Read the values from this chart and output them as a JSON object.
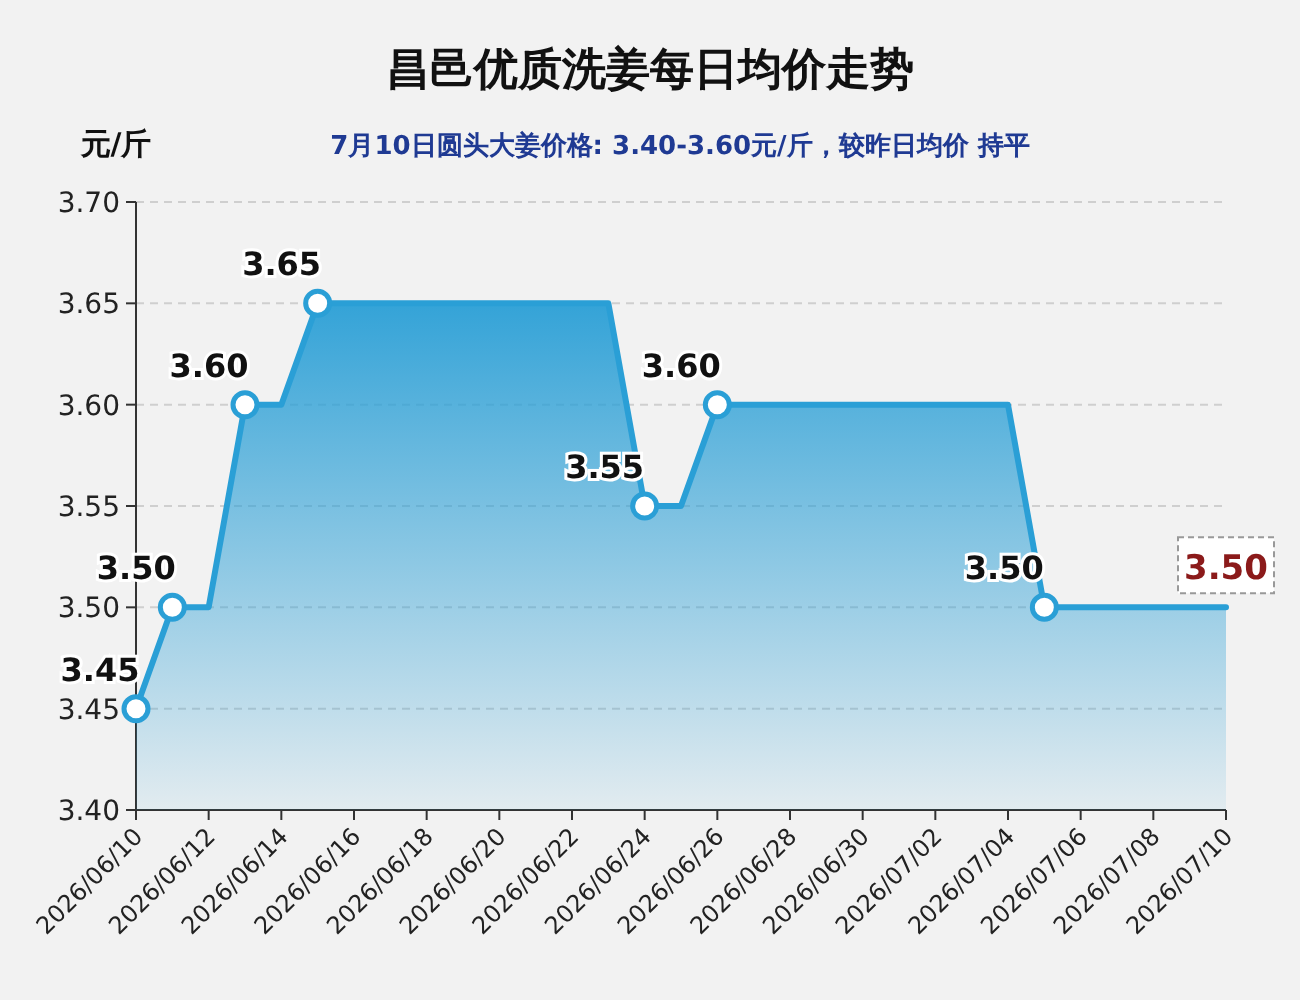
{
  "chart_data": {
    "type": "area",
    "title": "昌邑优质洗姜每日均价走势",
    "subtitle": "7月10日圆头大姜价格: 3.40-3.60元/斤，较昨日均价 持平",
    "ylabel": "元/斤",
    "x": [
      "2026-06-10",
      "2026-06-11",
      "2026-06-12",
      "2026-06-13",
      "2026-06-14",
      "2026-06-15",
      "2026-06-16",
      "2026-06-17",
      "2026-06-18",
      "2026-06-19",
      "2026-06-20",
      "2026-06-21",
      "2026-06-22",
      "2026-06-23",
      "2026-06-24",
      "2026-06-25",
      "2026-06-26",
      "2026-06-27",
      "2026-06-28",
      "2026-06-29",
      "2026-06-30",
      "2026-07-01",
      "2026-07-02",
      "2026-07-03",
      "2026-07-04",
      "2026-07-05",
      "2026-07-06",
      "2026-07-07",
      "2026-07-08",
      "2026-07-09",
      "2026-07-10"
    ],
    "series": [
      {
        "color": "#2a9fd6",
        "values": [
          3.45,
          3.5,
          3.5,
          3.6,
          3.6,
          3.65,
          3.65,
          3.65,
          3.65,
          3.65,
          3.65,
          3.65,
          3.65,
          3.65,
          3.55,
          3.55,
          3.6,
          3.6,
          3.6,
          3.6,
          3.6,
          3.6,
          3.6,
          3.6,
          3.6,
          3.5,
          3.5,
          3.5,
          3.5,
          3.5,
          3.5
        ],
        "value_labels": [
          "3.45",
          "3.50",
          null,
          "3.60",
          null,
          "3.65",
          null,
          null,
          null,
          null,
          null,
          null,
          null,
          null,
          "3.55",
          null,
          "3.60",
          null,
          null,
          null,
          null,
          null,
          null,
          null,
          null,
          "3.50",
          null,
          null,
          null,
          null,
          null
        ]
      }
    ],
    "annotations": [
      {
        "text": "3.50",
        "x": "2026-07-10",
        "y": 3.5
      }
    ],
    "grid": "y",
    "ylim": [
      3.4,
      3.7
    ],
    "yticks": [
      {
        "value": 3.4,
        "label": "3.40"
      },
      {
        "value": 3.45,
        "label": "3.45"
      },
      {
        "value": 3.5,
        "label": "3.50"
      },
      {
        "value": 3.55,
        "label": "3.55"
      },
      {
        "value": 3.6,
        "label": "3.60"
      },
      {
        "value": 3.65,
        "label": "3.65"
      },
      {
        "value": 3.7,
        "label": "3.70"
      }
    ],
    "xlim": [
      "2026-06-10",
      "2026-07-10"
    ],
    "xticks": [
      {
        "value": "2026-06-10",
        "label": "2026/06/10"
      },
      {
        "value": "2026-06-12",
        "label": "2026/06/12"
      },
      {
        "value": "2026-06-14",
        "label": "2026/06/14"
      },
      {
        "value": "2026-06-16",
        "label": "2026/06/16"
      },
      {
        "value": "2026-06-18",
        "label": "2026/06/18"
      },
      {
        "value": "2026-06-20",
        "label": "2026/06/20"
      },
      {
        "value": "2026-06-22",
        "label": "2026/06/22"
      },
      {
        "value": "2026-06-24",
        "label": "2026/06/24"
      },
      {
        "value": "2026-06-26",
        "label": "2026/06/26"
      },
      {
        "value": "2026-06-28",
        "label": "2026/06/28"
      },
      {
        "value": "2026-06-30",
        "label": "2026/06/30"
      },
      {
        "value": "2026-07-02",
        "label": "2026/07/02"
      },
      {
        "value": "2026-07-04",
        "label": "2026/07/04"
      },
      {
        "value": "2026-07-06",
        "label": "2026/07/06"
      },
      {
        "value": "2026-07-08",
        "label": "2026/07/08"
      },
      {
        "value": "2026-07-10",
        "label": "2026/07/10"
      }
    ]
  }
}
